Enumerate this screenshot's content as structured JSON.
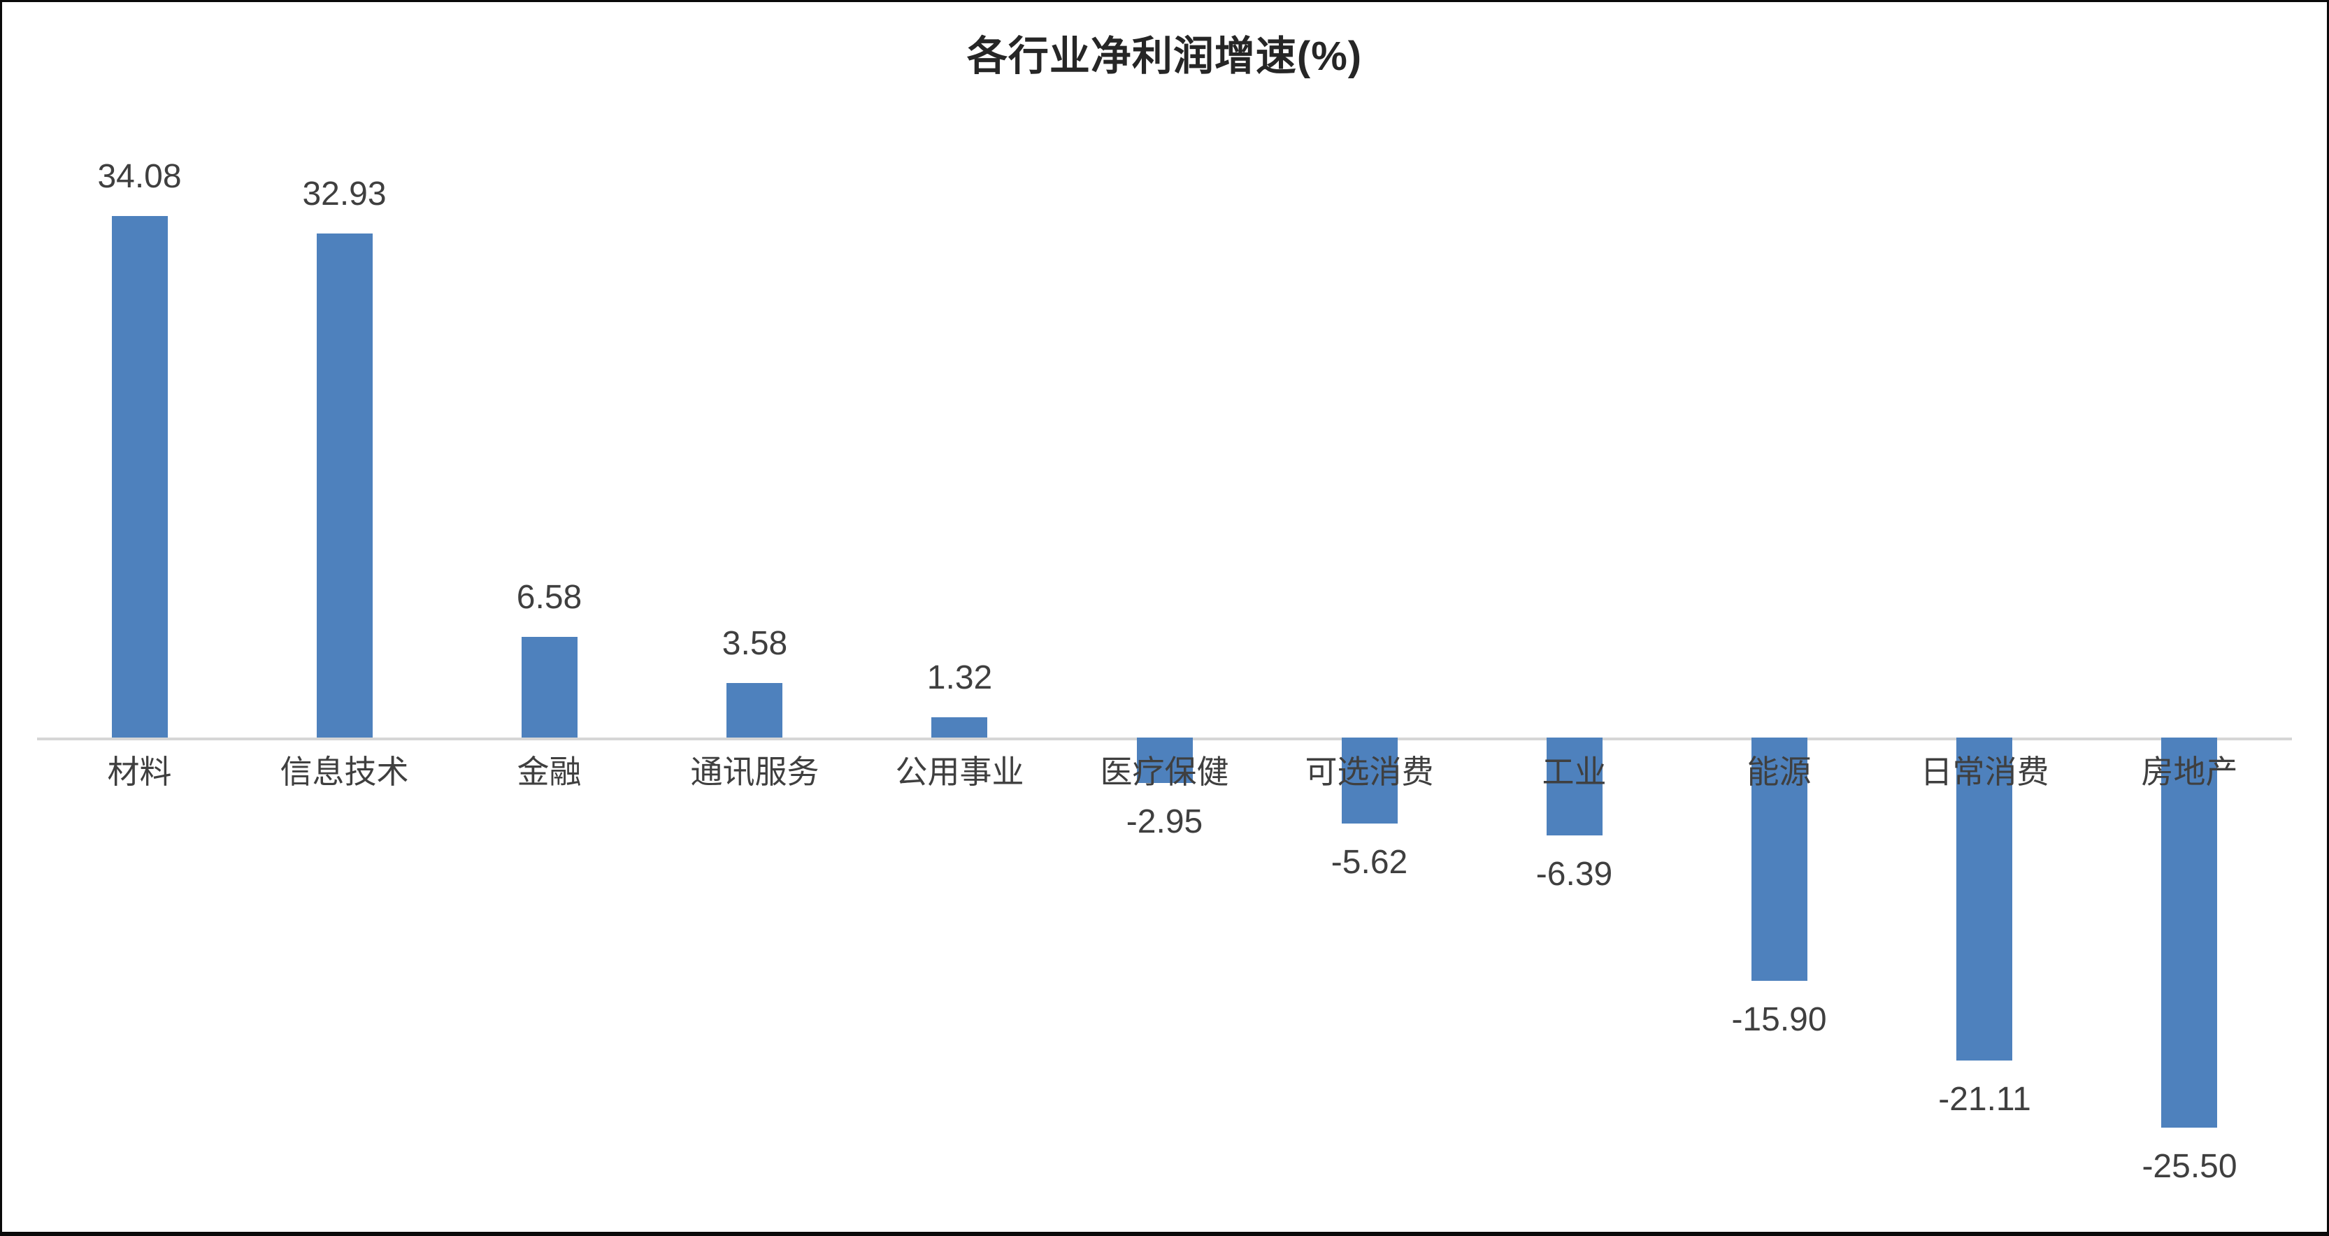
{
  "chart_data": {
    "type": "bar",
    "title": "各行业净利润增速(%)",
    "categories": [
      "材料",
      "信息技术",
      "金融",
      "通讯服务",
      "公用事业",
      "医疗保健",
      "可选消费",
      "工业",
      "能源",
      "日常消费",
      "房地产"
    ],
    "values": [
      34.08,
      32.93,
      6.58,
      3.58,
      1.32,
      -2.95,
      -5.62,
      -6.39,
      -15.9,
      -21.11,
      -25.5
    ],
    "value_labels": [
      "34.08",
      "32.93",
      "6.58",
      "3.58",
      "1.32",
      "-2.95",
      "-5.62",
      "-6.39",
      "-15.90",
      "-21.11",
      "-25.50"
    ],
    "xlabel": "",
    "ylabel": "",
    "ylim": [
      -30,
      40
    ],
    "grid": "off",
    "legend": "none",
    "data_label_position": "outside-end",
    "colors": {
      "bar": "#4E81BD",
      "axis_line": "#D6D6D6",
      "labels": "#3F3F3F",
      "title": "#262626",
      "background": "#FFFFFF",
      "frame_border": "#0A0A0A"
    }
  }
}
